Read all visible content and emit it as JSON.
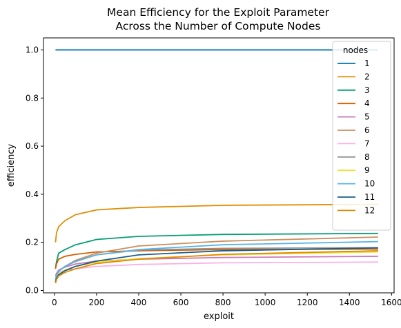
{
  "chart_data": {
    "type": "line",
    "title_lines": [
      "Mean Efficiency for the Exploit Parameter",
      "Across the Number of Compute Nodes"
    ],
    "xlabel": "exploit",
    "ylabel": "efficiency",
    "xlim": [
      -52,
      1612
    ],
    "ylim": [
      -0.01,
      1.05
    ],
    "xticks": [
      0,
      200,
      400,
      600,
      800,
      1000,
      1200,
      1400,
      1600
    ],
    "yticks": [
      0.0,
      0.2,
      0.4,
      0.6,
      0.8,
      1.0
    ],
    "xtick_labels": [
      "0",
      "200",
      "400",
      "600",
      "800",
      "1000",
      "1200",
      "1400",
      "1600"
    ],
    "ytick_labels": [
      "0.0",
      "0.2",
      "0.4",
      "0.6",
      "0.8",
      "1.0"
    ],
    "grid": false,
    "legend": {
      "title": "nodes",
      "placement": "right"
    },
    "x": [
      5,
      10,
      20,
      50,
      100,
      200,
      400,
      800,
      1536
    ],
    "series": [
      {
        "name": "1",
        "color": "#0173b2",
        "values": [
          1.0,
          1.0,
          1.0,
          1.0,
          1.0,
          1.0,
          1.0,
          1.0,
          1.0
        ]
      },
      {
        "name": "2",
        "color": "#de8f05",
        "values": [
          0.2,
          0.24,
          0.265,
          0.29,
          0.315,
          0.335,
          0.345,
          0.354,
          0.358
        ]
      },
      {
        "name": "3",
        "color": "#029e73",
        "values": [
          0.095,
          0.12,
          0.155,
          0.17,
          0.19,
          0.212,
          0.225,
          0.233,
          0.237
        ]
      },
      {
        "name": "4",
        "color": "#d55e00",
        "values": [
          0.09,
          0.11,
          0.13,
          0.142,
          0.15,
          0.16,
          0.165,
          0.17,
          0.172
        ]
      },
      {
        "name": "5",
        "color": "#cc78bc",
        "values": [
          0.06,
          0.072,
          0.085,
          0.097,
          0.11,
          0.122,
          0.13,
          0.137,
          0.142
        ]
      },
      {
        "name": "6",
        "color": "#ca9161",
        "values": [
          0.05,
          0.065,
          0.08,
          0.1,
          0.125,
          0.155,
          0.185,
          0.205,
          0.222
        ]
      },
      {
        "name": "7",
        "color": "#fbafe4",
        "values": [
          0.05,
          0.062,
          0.075,
          0.085,
          0.09,
          0.1,
          0.108,
          0.115,
          0.118
        ]
      },
      {
        "name": "8",
        "color": "#949494",
        "values": [
          0.04,
          0.06,
          0.08,
          0.1,
          0.122,
          0.148,
          0.168,
          0.175,
          0.178
        ]
      },
      {
        "name": "9",
        "color": "#ece133",
        "values": [
          0.035,
          0.05,
          0.068,
          0.085,
          0.1,
          0.118,
          0.132,
          0.148,
          0.16
        ]
      },
      {
        "name": "10",
        "color": "#56b4e9",
        "values": [
          0.045,
          0.062,
          0.08,
          0.1,
          0.12,
          0.148,
          0.17,
          0.19,
          0.203
        ]
      },
      {
        "name": "11",
        "color": "#1a5e8a",
        "values": [
          0.035,
          0.05,
          0.065,
          0.082,
          0.1,
          0.122,
          0.148,
          0.165,
          0.177
        ]
      },
      {
        "name": "12",
        "color": "#e08a00",
        "values": [
          0.03,
          0.045,
          0.06,
          0.075,
          0.09,
          0.112,
          0.13,
          0.15,
          0.165
        ]
      }
    ]
  }
}
